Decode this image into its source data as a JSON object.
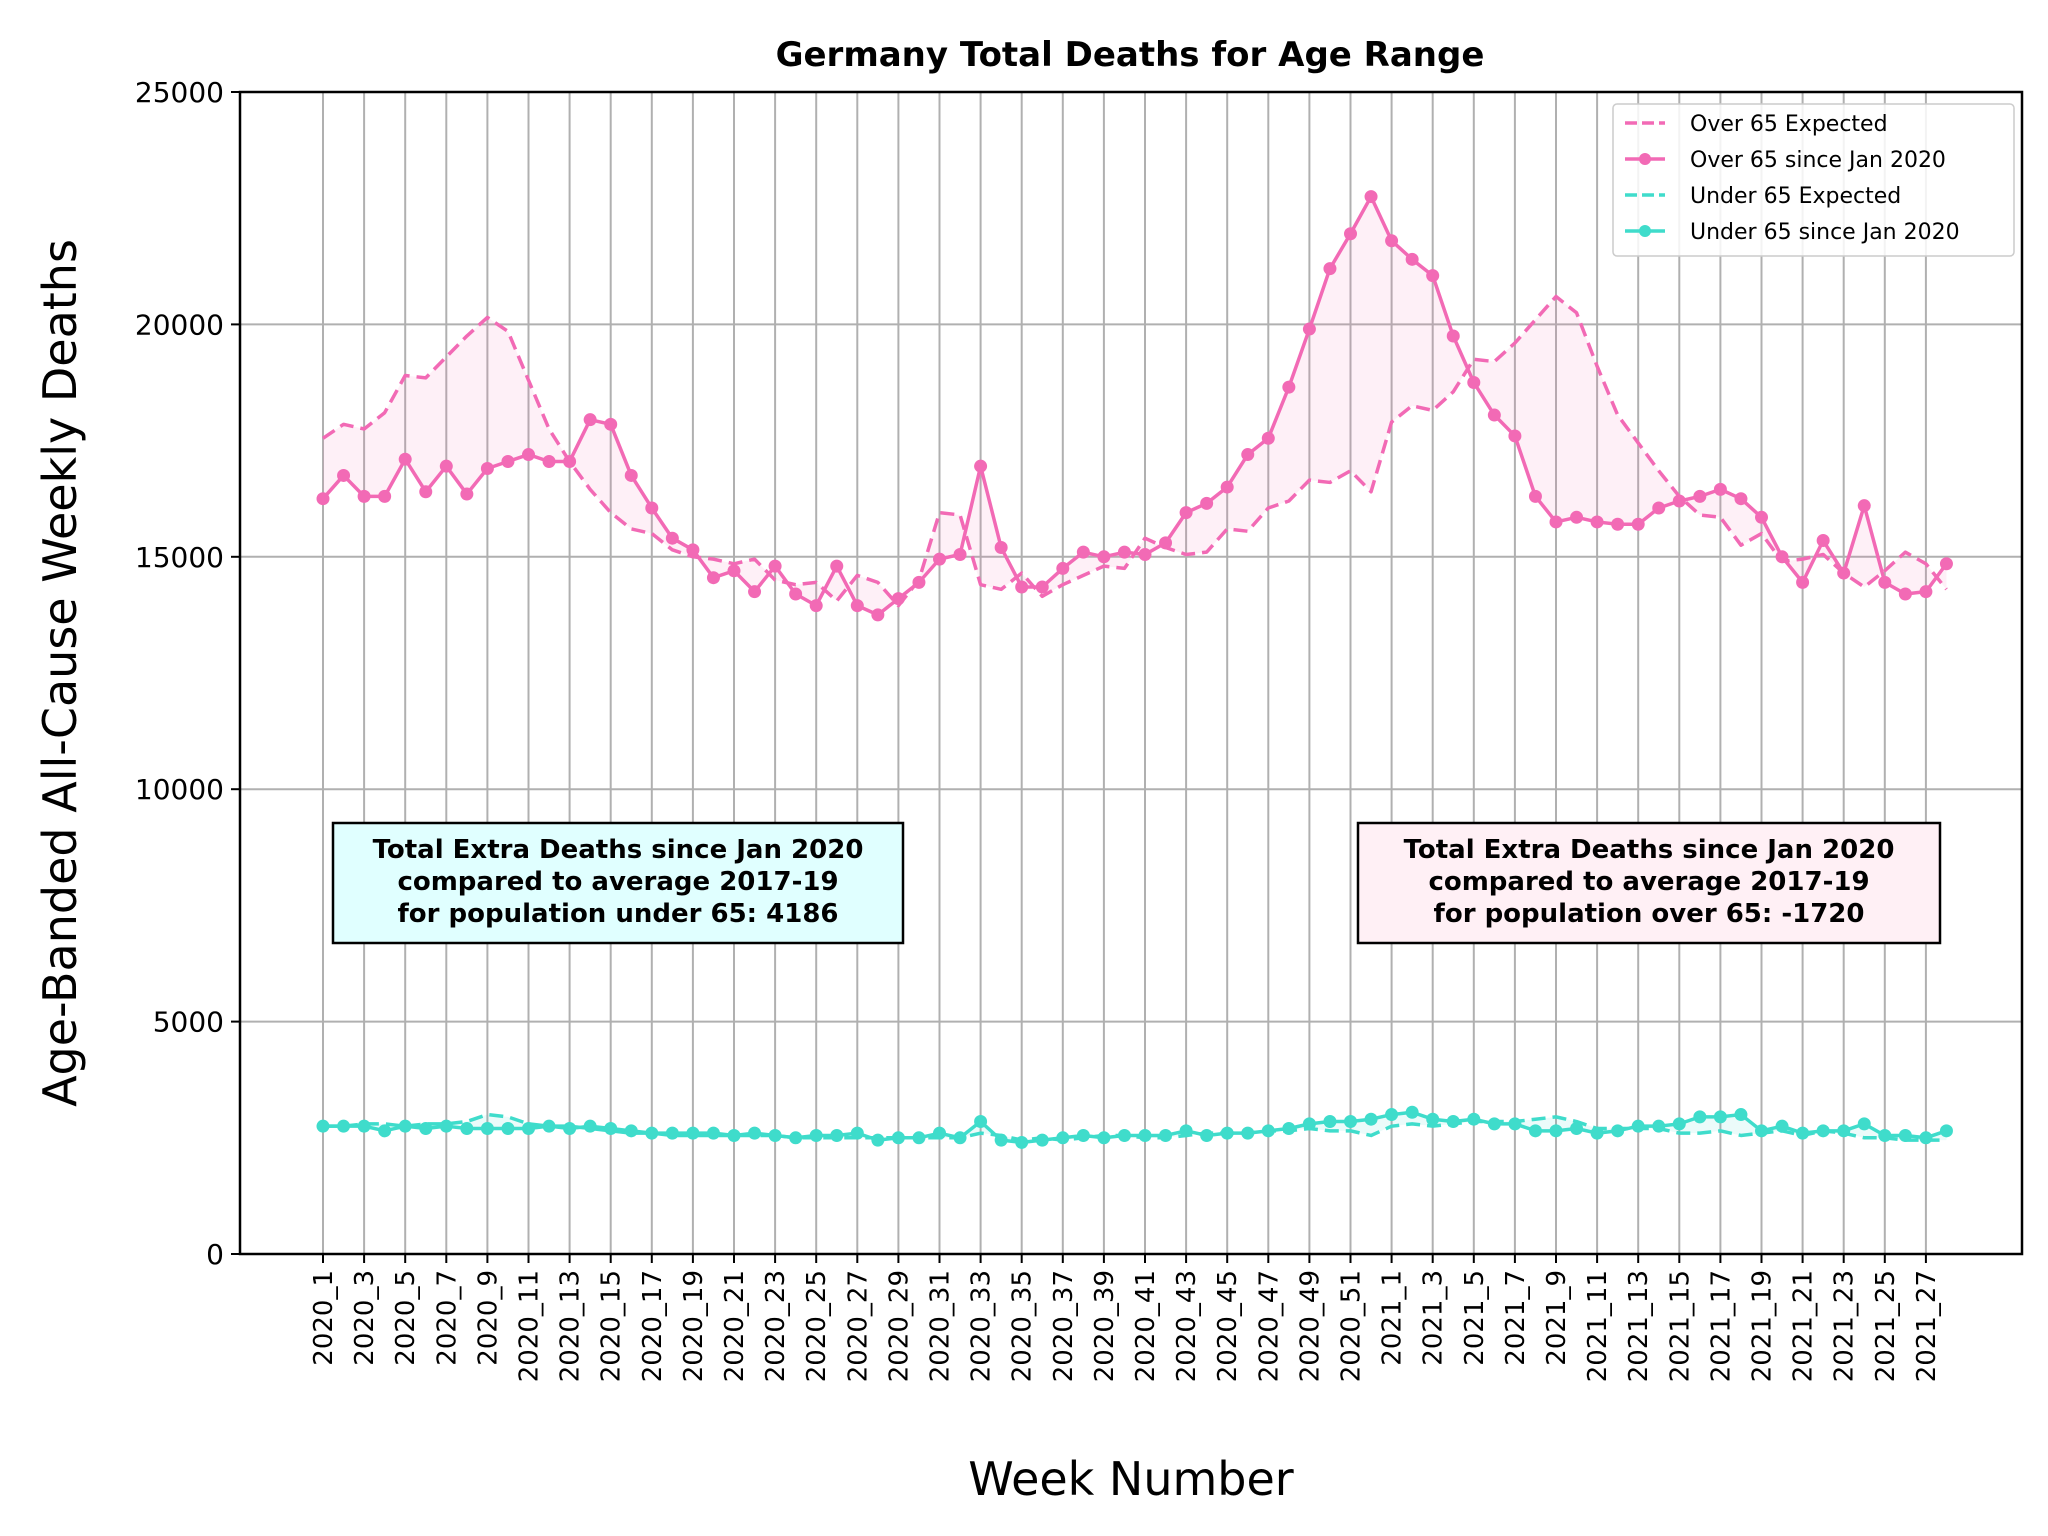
{
  "chart_data": {
    "type": "line",
    "title": "Germany Total Deaths for Age Range",
    "xlabel": "Week Number",
    "ylabel": "Age-Banded All-Cause Weekly Deaths",
    "ylim": [
      0,
      25000
    ],
    "yticks": [
      0,
      5000,
      10000,
      15000,
      20000,
      25000
    ],
    "grid": true,
    "legend_position": "top-right",
    "tick_labels": [
      "2020_1",
      "2020_3",
      "2020_5",
      "2020_7",
      "2020_9",
      "2020_11",
      "2020_13",
      "2020_15",
      "2020_17",
      "2020_19",
      "2020_21",
      "2020_23",
      "2020_25",
      "2020_27",
      "2020_29",
      "2020_31",
      "2020_33",
      "2020_35",
      "2020_37",
      "2020_39",
      "2020_41",
      "2020_43",
      "2020_45",
      "2020_47",
      "2020_49",
      "2020_51",
      "2021_1",
      "2021_3",
      "2021_5",
      "2021_7",
      "2021_9",
      "2021_11",
      "2021_13",
      "2021_15",
      "2021_17",
      "2021_19",
      "2021_21",
      "2021_23",
      "2021_25",
      "2021_27"
    ],
    "series": [
      {
        "name": "Over 65 Expected",
        "style": "dashed",
        "color": "#f26ab5",
        "values": [
          17550,
          17850,
          17750,
          18100,
          18900,
          18850,
          19300,
          19750,
          20150,
          19850,
          18800,
          17750,
          17050,
          16450,
          15950,
          15600,
          15500,
          15150,
          15000,
          14950,
          14850,
          14950,
          14500,
          14400,
          14450,
          14050,
          14600,
          14450,
          13950,
          14500,
          15950,
          15900,
          14400,
          14300,
          14650,
          14150,
          14400,
          14600,
          14800,
          14750,
          15400,
          15200,
          15050,
          15100,
          15600,
          15550,
          16050,
          16200,
          16650,
          16600,
          16850,
          16400,
          17900,
          18250,
          18150,
          18550,
          19250,
          19200,
          19600,
          20100,
          20600,
          20250,
          19100,
          18050,
          17450,
          16850,
          16300,
          15900,
          15850,
          15250,
          15500,
          14900,
          14950,
          15050,
          14650,
          14350,
          14700,
          15100,
          14850,
          14300
        ]
      },
      {
        "name": "Over 65 since Jan 2020",
        "style": "solid-markers",
        "color": "#f26ab5",
        "values": [
          16250,
          16750,
          16300,
          16300,
          17100,
          16400,
          16950,
          16350,
          16900,
          17050,
          17200,
          17050,
          17050,
          17950,
          17850,
          16750,
          16050,
          15400,
          15150,
          14550,
          14700,
          14250,
          14800,
          14200,
          13950,
          14800,
          13950,
          13750,
          14100,
          14450,
          14950,
          15050,
          16950,
          15200,
          14350,
          14350,
          14750,
          15100,
          15000,
          15100,
          15050,
          15300,
          15950,
          16150,
          16500,
          17200,
          17550,
          18650,
          19900,
          21200,
          21950,
          22750,
          21800,
          21400,
          21050,
          19750,
          18750,
          18050,
          17600,
          16300,
          15750,
          15850,
          15750,
          15700,
          15700,
          16050,
          16200,
          16300,
          16450,
          16250,
          15850,
          15000,
          14450,
          15350,
          14650,
          16100,
          14450,
          14200,
          14250,
          14850
        ]
      },
      {
        "name": "Under 65 Expected",
        "style": "dashed",
        "color": "#3fdccb",
        "values": [
          2750,
          2750,
          2800,
          2800,
          2750,
          2800,
          2800,
          2850,
          3000,
          2950,
          2800,
          2750,
          2750,
          2700,
          2650,
          2600,
          2600,
          2550,
          2550,
          2550,
          2550,
          2550,
          2550,
          2500,
          2500,
          2500,
          2500,
          2500,
          2500,
          2500,
          2500,
          2500,
          2600,
          2550,
          2450,
          2500,
          2450,
          2500,
          2550,
          2550,
          2500,
          2500,
          2550,
          2600,
          2600,
          2600,
          2650,
          2650,
          2700,
          2650,
          2650,
          2550,
          2750,
          2800,
          2750,
          2800,
          2850,
          2850,
          2850,
          2900,
          2950,
          2850,
          2700,
          2700,
          2700,
          2700,
          2600,
          2600,
          2650,
          2550,
          2600,
          2650,
          2550,
          2650,
          2600,
          2500,
          2500,
          2450,
          2450,
          2450
        ]
      },
      {
        "name": "Under 65 since Jan 2020",
        "style": "solid-markers",
        "color": "#3fdccb",
        "values": [
          2750,
          2750,
          2750,
          2650,
          2750,
          2700,
          2750,
          2700,
          2700,
          2700,
          2700,
          2750,
          2700,
          2750,
          2700,
          2650,
          2600,
          2600,
          2600,
          2600,
          2550,
          2600,
          2550,
          2500,
          2550,
          2550,
          2600,
          2450,
          2500,
          2500,
          2600,
          2500,
          2850,
          2450,
          2400,
          2450,
          2500,
          2550,
          2500,
          2550,
          2550,
          2550,
          2650,
          2550,
          2600,
          2600,
          2650,
          2700,
          2800,
          2850,
          2850,
          2900,
          3000,
          3050,
          2900,
          2850,
          2900,
          2800,
          2800,
          2650,
          2650,
          2700,
          2600,
          2650,
          2750,
          2750,
          2800,
          2950,
          2950,
          3000,
          2650,
          2750,
          2600,
          2650,
          2650,
          2800,
          2550,
          2550,
          2500,
          2650
        ]
      }
    ],
    "annotations": [
      {
        "name": "under-65",
        "background": "#e0ffff",
        "lines": [
          "Total Extra Deaths since Jan 2020",
          "compared to average 2017-19",
          "for population under 65: 4186"
        ]
      },
      {
        "name": "over-65",
        "background": "#fff0f5",
        "lines": [
          "Total Extra Deaths since Jan 2020",
          "compared to average 2017-19",
          "for population over 65: -1720"
        ]
      }
    ]
  }
}
